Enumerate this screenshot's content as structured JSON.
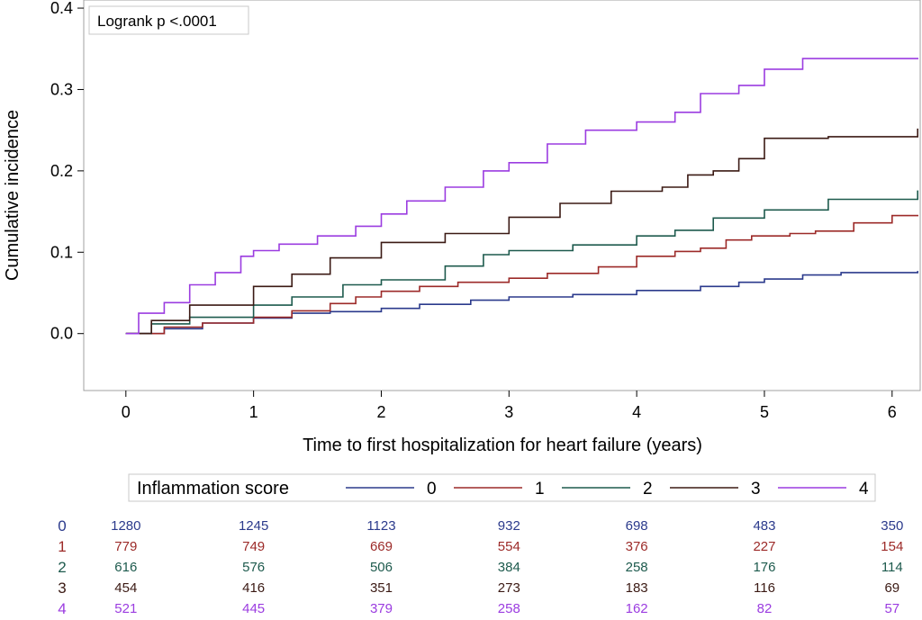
{
  "chart_data": {
    "type": "line",
    "step": true,
    "title": "",
    "xlabel": "Time to first hospitalization for heart failure (years)",
    "ylabel": "Cumulative incidence",
    "xlim": [
      -0.33,
      6.22
    ],
    "ylim": [
      -0.07,
      0.41
    ],
    "xticks": [
      0,
      1,
      2,
      3,
      4,
      5,
      6
    ],
    "yticks": [
      0.0,
      0.1,
      0.2,
      0.3,
      0.4
    ],
    "ytick_labels": [
      "0.0",
      "0.1",
      "0.2",
      "0.3",
      "0.4"
    ],
    "annotation": "Logrank p <.0001",
    "grid": false,
    "legend": {
      "title": "Inflammation score",
      "position": "bottom"
    },
    "series": [
      {
        "name": "0",
        "color": "#2b3a8c",
        "x": [
          0,
          0.3,
          0.6,
          1.0,
          1.3,
          1.6,
          2.0,
          2.3,
          2.7,
          3.0,
          3.5,
          4.0,
          4.5,
          4.8,
          5.0,
          5.3,
          5.6,
          6.2
        ],
        "y": [
          0,
          0.006,
          0.013,
          0.019,
          0.025,
          0.027,
          0.031,
          0.036,
          0.041,
          0.045,
          0.048,
          0.053,
          0.058,
          0.063,
          0.067,
          0.072,
          0.075,
          0.077
        ]
      },
      {
        "name": "1",
        "color": "#9c2a28",
        "x": [
          0,
          0.3,
          0.6,
          1.0,
          1.3,
          1.6,
          1.8,
          2.0,
          2.3,
          2.6,
          3.0,
          3.3,
          3.7,
          4.0,
          4.3,
          4.5,
          4.7,
          4.9,
          5.2,
          5.4,
          5.7,
          6.0,
          6.2
        ],
        "y": [
          0,
          0.008,
          0.013,
          0.02,
          0.028,
          0.037,
          0.045,
          0.052,
          0.058,
          0.063,
          0.068,
          0.074,
          0.082,
          0.095,
          0.101,
          0.105,
          0.115,
          0.12,
          0.123,
          0.126,
          0.136,
          0.145,
          0.146
        ]
      },
      {
        "name": "2",
        "color": "#1d5a4d",
        "x": [
          0,
          0.2,
          0.5,
          1.0,
          1.3,
          1.7,
          2.0,
          2.5,
          2.8,
          3.0,
          3.5,
          4.0,
          4.3,
          4.6,
          5.0,
          5.5,
          6.2
        ],
        "y": [
          0,
          0.012,
          0.02,
          0.035,
          0.045,
          0.06,
          0.066,
          0.083,
          0.097,
          0.102,
          0.109,
          0.12,
          0.127,
          0.142,
          0.152,
          0.165,
          0.176
        ]
      },
      {
        "name": "3",
        "color": "#3b1a14",
        "x": [
          0,
          0.2,
          0.5,
          1.0,
          1.3,
          1.6,
          2.0,
          2.5,
          3.0,
          3.4,
          3.8,
          4.2,
          4.4,
          4.6,
          4.8,
          5.0,
          5.5,
          6.2
        ],
        "y": [
          0,
          0.016,
          0.035,
          0.058,
          0.073,
          0.093,
          0.112,
          0.123,
          0.143,
          0.16,
          0.175,
          0.18,
          0.195,
          0.2,
          0.215,
          0.24,
          0.242,
          0.252
        ]
      },
      {
        "name": "4",
        "color": "#9b3ce0",
        "x": [
          0,
          0.1,
          0.3,
          0.5,
          0.7,
          0.9,
          1.0,
          1.2,
          1.5,
          1.8,
          2.0,
          2.2,
          2.5,
          2.8,
          3.0,
          3.3,
          3.6,
          4.0,
          4.3,
          4.5,
          4.8,
          5.0,
          5.3,
          6.2
        ],
        "y": [
          0,
          0.025,
          0.038,
          0.06,
          0.075,
          0.095,
          0.102,
          0.11,
          0.12,
          0.132,
          0.147,
          0.163,
          0.18,
          0.2,
          0.21,
          0.233,
          0.25,
          0.26,
          0.272,
          0.295,
          0.305,
          0.325,
          0.338,
          0.339
        ]
      }
    ],
    "risk_table": {
      "times": [
        0,
        1,
        2,
        3,
        4,
        5,
        6
      ],
      "rows": [
        {
          "label": "0",
          "color": "#2b3a8c",
          "values": [
            "1280",
            "1245",
            "1123",
            "932",
            "698",
            "483",
            "350"
          ]
        },
        {
          "label": "1",
          "color": "#9c2a28",
          "values": [
            "779",
            "749",
            "669",
            "554",
            "376",
            "227",
            "154"
          ]
        },
        {
          "label": "2",
          "color": "#1d5a4d",
          "values": [
            "616",
            "576",
            "506",
            "384",
            "258",
            "176",
            "114"
          ]
        },
        {
          "label": "3",
          "color": "#3b1a14",
          "values": [
            "454",
            "416",
            "351",
            "273",
            "183",
            "116",
            "69"
          ]
        },
        {
          "label": "4",
          "color": "#9b3ce0",
          "values": [
            "521",
            "445",
            "379",
            "258",
            "162",
            "82",
            "57"
          ]
        }
      ]
    }
  }
}
